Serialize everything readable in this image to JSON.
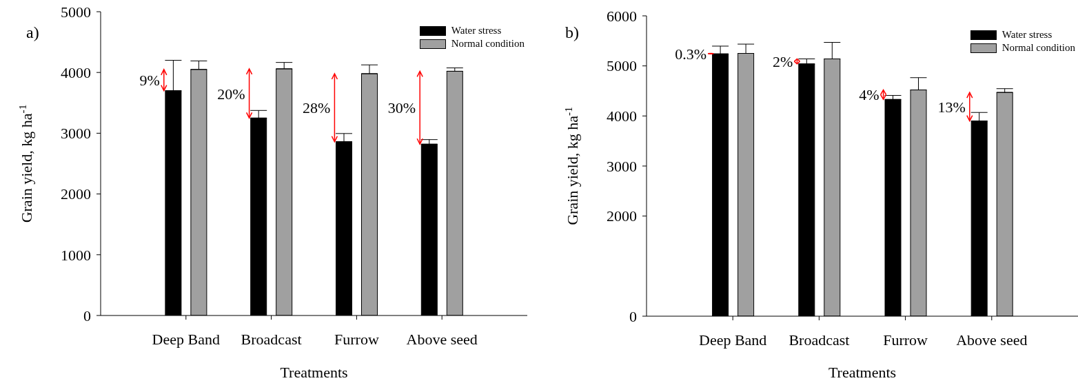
{
  "chart_data": [
    {
      "type": "bar",
      "title": "a)",
      "xlabel": "Treatments",
      "ylabel": "Grain yield, kg ha$^{-1}$",
      "categories": [
        "Deep Band",
        "Broadcast",
        "Furrow",
        "Above seed"
      ],
      "series": [
        {
          "name": "Water stress",
          "color": "#000000",
          "values": [
            3700,
            3250,
            2860,
            2820
          ],
          "errors": [
            500,
            125,
            135,
            75
          ]
        },
        {
          "name": "Normal condition",
          "color": "#a0a0a0",
          "values": [
            4050,
            4060,
            3980,
            4020
          ],
          "errors": [
            140,
            105,
            145,
            55
          ]
        }
      ],
      "ylim": [
        0,
        5000
      ],
      "yticks": [
        0,
        1000,
        2000,
        3000,
        4000,
        5000
      ],
      "legend": "top right",
      "grid": false,
      "annotations": [
        "9%",
        "20%",
        "28%",
        "30%"
      ]
    },
    {
      "type": "bar",
      "title": "b)",
      "xlabel": "Treatments",
      "ylabel": "Grain yield, kg ha$^{-1}$",
      "categories": [
        "Deep Band",
        "Broadcast",
        "Furrow",
        "Above seed"
      ],
      "series": [
        {
          "name": "Water stress",
          "color": "#000000",
          "values": [
            5240,
            5040,
            4330,
            3900
          ],
          "errors": [
            155,
            100,
            80,
            170
          ]
        },
        {
          "name": "Normal condition",
          "color": "#a0a0a0",
          "values": [
            5250,
            5140,
            4520,
            4470
          ],
          "errors": [
            185,
            330,
            245,
            75
          ]
        }
      ],
      "ylim": [
        0,
        6000
      ],
      "yticks": [
        0,
        2000,
        3000,
        4000,
        5000,
        6000
      ],
      "legend": "top right",
      "grid": false,
      "annotations": [
        "0.3%",
        "2%",
        "4%",
        "13%"
      ]
    }
  ]
}
